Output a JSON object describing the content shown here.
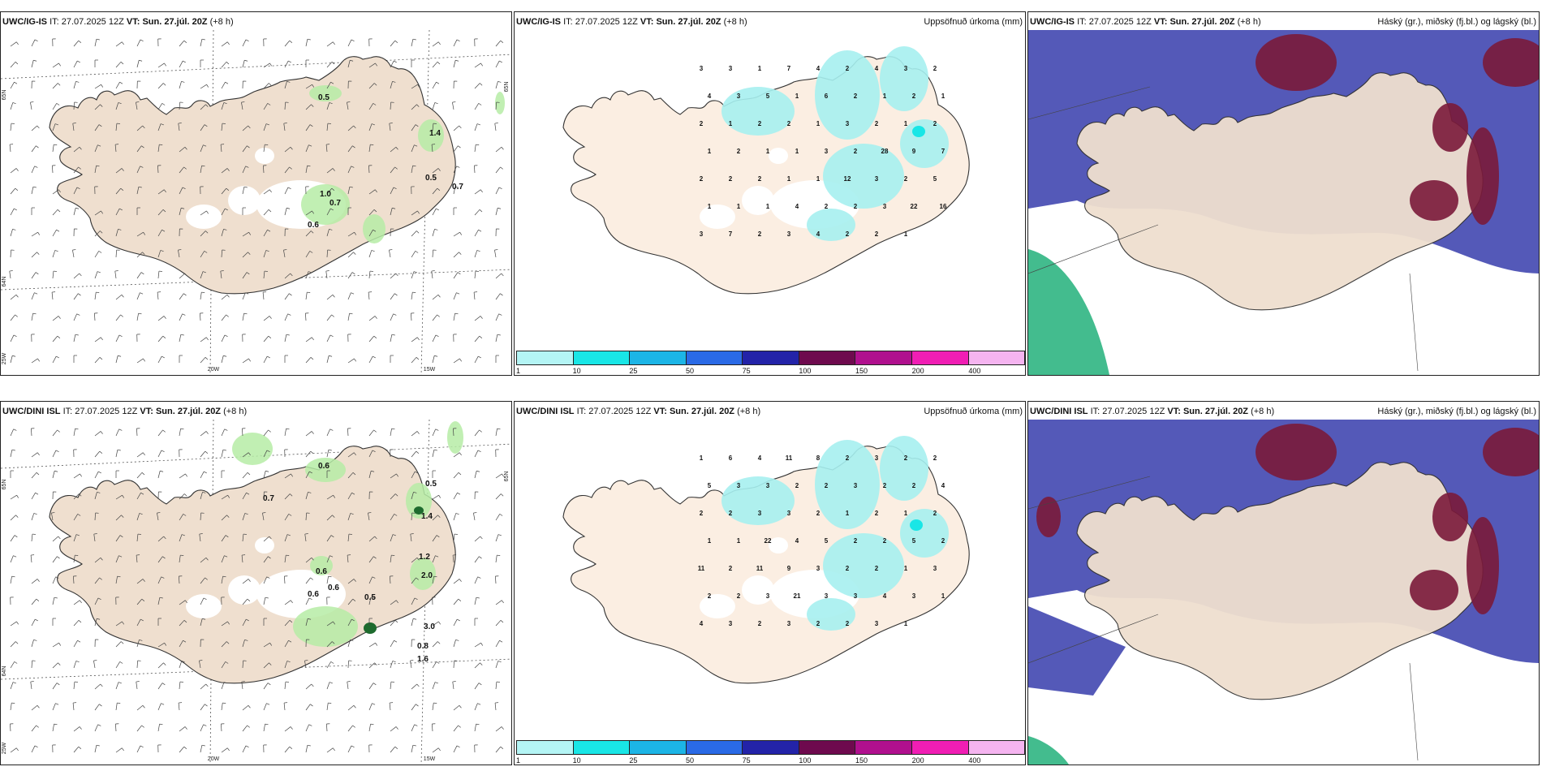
{
  "rows": [
    {
      "model": "UWC/IG-IS",
      "it_label": "IT:",
      "it_value": "27.07.2025 12Z",
      "vt_label": "VT:",
      "vt_value": "Sun. 27.júl. 20Z",
      "lead": "(+8 h)",
      "wind_values": [
        "0.5",
        "1.4",
        "0.5",
        "0.7",
        "1.0",
        "0.7",
        "0.6"
      ],
      "precip_values": [
        "3",
        "3",
        "1",
        "7",
        "4",
        "2",
        "4",
        "3",
        "2",
        "4",
        "3",
        "5",
        "1",
        "6",
        "2",
        "1",
        "2",
        "1",
        "2",
        "1",
        "2",
        "2",
        "1",
        "3",
        "2",
        "1",
        "2",
        "1",
        "2",
        "1",
        "1",
        "3",
        "2",
        "28",
        "9",
        "7",
        "2",
        "2",
        "2",
        "1",
        "1",
        "12",
        "3",
        "2",
        "5",
        "1",
        "1",
        "1",
        "4",
        "2",
        "2",
        "3",
        "22",
        "16",
        "3",
        "7",
        "2",
        "3",
        "4",
        "2",
        "2",
        "1"
      ],
      "grid_labels": [
        "65N",
        "64N",
        "25W",
        "20W",
        "15W",
        "65N"
      ]
    },
    {
      "model": "UWC/DINI ISL",
      "it_label": "IT:",
      "it_value": "27.07.2025 12Z",
      "vt_label": "VT:",
      "vt_value": "Sun. 27.júl. 20Z",
      "lead": "(+8 h)",
      "wind_values": [
        "0.6",
        "0.7",
        "0.5",
        "1.4",
        "1.2",
        "2.0",
        "0.6",
        "0.6",
        "0.6",
        "0.5",
        "3.0",
        "0.8",
        "1.6"
      ],
      "precip_values": [
        "1",
        "6",
        "4",
        "11",
        "8",
        "2",
        "3",
        "2",
        "2",
        "5",
        "3",
        "3",
        "2",
        "2",
        "3",
        "2",
        "2",
        "4",
        "2",
        "2",
        "3",
        "3",
        "2",
        "1",
        "2",
        "1",
        "2",
        "1",
        "1",
        "22",
        "4",
        "5",
        "2",
        "2",
        "5",
        "2",
        "11",
        "2",
        "11",
        "9",
        "3",
        "2",
        "2",
        "1",
        "3",
        "2",
        "2",
        "3",
        "21",
        "3",
        "3",
        "4",
        "3",
        "1",
        "4",
        "3",
        "2",
        "3",
        "2",
        "2",
        "3",
        "1"
      ],
      "grid_labels": [
        "65N",
        "64N",
        "25W",
        "20W",
        "15W",
        "65N"
      ]
    }
  ],
  "precip_title": "Uppsöfnuð úrkoma (mm)",
  "cloud_title": "Háský (gr.), miðský (fj.bl.) og lágský (bl.)",
  "colorbar": {
    "ticks": [
      "1",
      "10",
      "25",
      "50",
      "75",
      "100",
      "150",
      "200",
      "400"
    ],
    "colors": [
      "#b4f5f5",
      "#19e6e6",
      "#1cb5e6",
      "#2a6ae6",
      "#2323a8",
      "#6e0a4e",
      "#b0108e",
      "#f01eb4",
      "#f5b4f0"
    ]
  },
  "colors": {
    "land": "#efdfcf",
    "precip_land": "#fbeee2",
    "cloud_high": "#7a1a3a",
    "cloud_mid": "#4b50b4",
    "cloud_low_green": "#22b07a",
    "green_light": "#b6eca6",
    "green_dark": "#1e6b2e",
    "cyan": "#a6f0f0"
  }
}
